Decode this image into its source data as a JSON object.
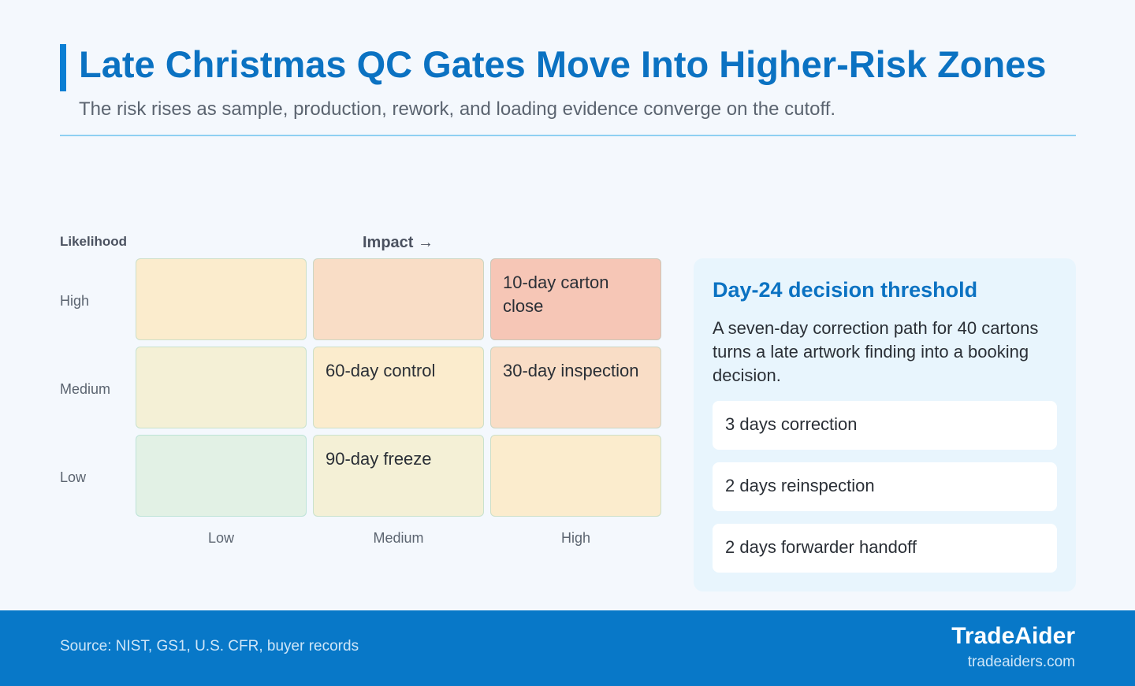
{
  "header": {
    "title": "Late Christmas QC Gates Move Into Higher-Risk Zones",
    "subtitle": "The risk rises as sample, production, rework, and loading evidence converge on the cutoff."
  },
  "chart_data": {
    "type": "heatmap",
    "ylabel": "Likelihood",
    "xlabel": "Impact →",
    "y_categories": [
      "High",
      "Medium",
      "Low"
    ],
    "x_categories": [
      "Low",
      "Medium",
      "High"
    ],
    "cells": [
      [
        {
          "label": "",
          "color": "#fbeccd"
        },
        {
          "label": "",
          "color": "#f9ddc6"
        },
        {
          "label": "10-day carton close",
          "color": "#f6c6b6"
        }
      ],
      [
        {
          "label": "",
          "color": "#f4f0d6"
        },
        {
          "label": "60-day control",
          "color": "#fbeccd"
        },
        {
          "label": "30-day inspection",
          "color": "#f9ddc6"
        }
      ],
      [
        {
          "label": "",
          "color": "#e2f1e5"
        },
        {
          "label": "90-day freeze",
          "color": "#f4f0d6"
        },
        {
          "label": "",
          "color": "#fbeccd"
        }
      ]
    ]
  },
  "panel": {
    "title": "Day-24 decision threshold",
    "text": "A seven-day correction path for 40 cartons turns a late artwork finding into a booking decision.",
    "steps": [
      "3 days correction",
      "2 days reinspection",
      "2 days forwarder handoff"
    ]
  },
  "footer": {
    "source": "Source: NIST, GS1, U.S. CFR, buyer records",
    "brand": "TradeAider",
    "url": "tradeaiders.com"
  },
  "colors": {
    "accent": "#0a7fd4",
    "title": "#0b72c2",
    "footer": "#0878c8"
  }
}
